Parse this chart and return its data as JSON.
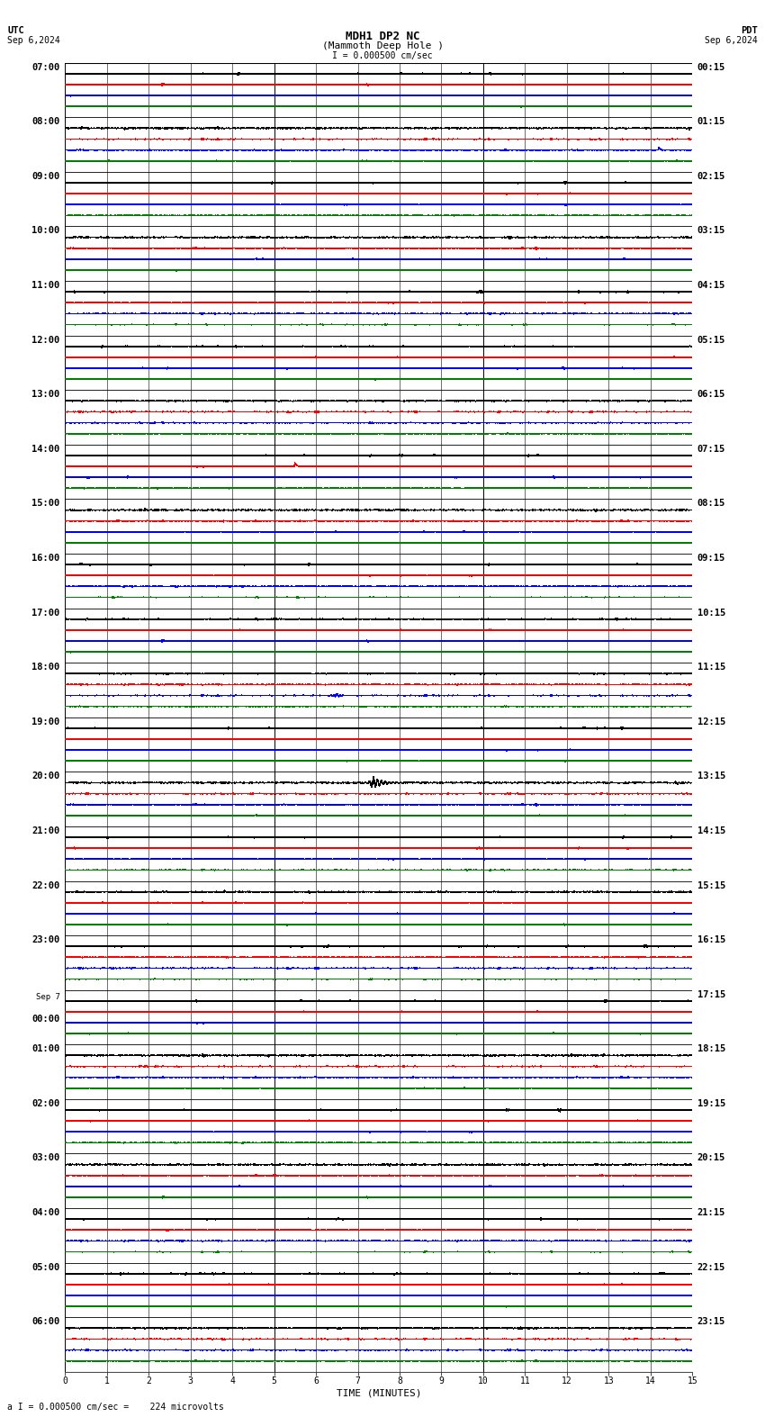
{
  "title_line1": "MDH1 DP2 NC",
  "title_line2": "(Mammoth Deep Hole )",
  "scale_label": "I = 0.000500 cm/sec",
  "bottom_label": "a I = 0.000500 cm/sec =    224 microvolts",
  "utc_label": "UTC",
  "utc_date": "Sep 6,2024",
  "pdt_label": "PDT",
  "pdt_date": "Sep 6,2024",
  "xlabel": "TIME (MINUTES)",
  "background_color": "#ffffff",
  "trace_colors": [
    "#000000",
    "#ff0000",
    "#0000ff",
    "#008000"
  ],
  "num_rows": 24,
  "minutes_per_row": 15,
  "utc_row_labels": [
    "07:00",
    "08:00",
    "09:00",
    "10:00",
    "11:00",
    "12:00",
    "13:00",
    "14:00",
    "15:00",
    "16:00",
    "17:00",
    "18:00",
    "19:00",
    "20:00",
    "21:00",
    "22:00",
    "23:00",
    "00:00",
    "01:00",
    "02:00",
    "03:00",
    "04:00",
    "05:00",
    "06:00"
  ],
  "sep7_row": 17,
  "pdt_row_labels": [
    "00:15",
    "01:15",
    "02:15",
    "03:15",
    "04:15",
    "05:15",
    "06:15",
    "07:15",
    "08:15",
    "09:15",
    "10:15",
    "11:15",
    "12:15",
    "13:15",
    "14:15",
    "15:15",
    "16:15",
    "17:15",
    "18:15",
    "19:15",
    "20:15",
    "21:15",
    "22:15",
    "23:15"
  ],
  "noise_amp_black": 0.006,
  "noise_amp_red": 0.004,
  "noise_amp_blue": 0.004,
  "noise_amp_green": 0.003,
  "event_row": 10,
  "event_minute": 7.35,
  "event_amplitude": 0.12,
  "event2_row": 12,
  "event2_minute": 6.5,
  "event2_amplitude": 0.04,
  "spike_row": 16,
  "spike_minute": 5.5,
  "spike_amplitude": 0.05,
  "spike2_row": 22,
  "spike2_minute": 14.2,
  "spike2_amplitude": 0.04,
  "fig_width": 8.5,
  "fig_height": 15.84,
  "dpi": 100
}
